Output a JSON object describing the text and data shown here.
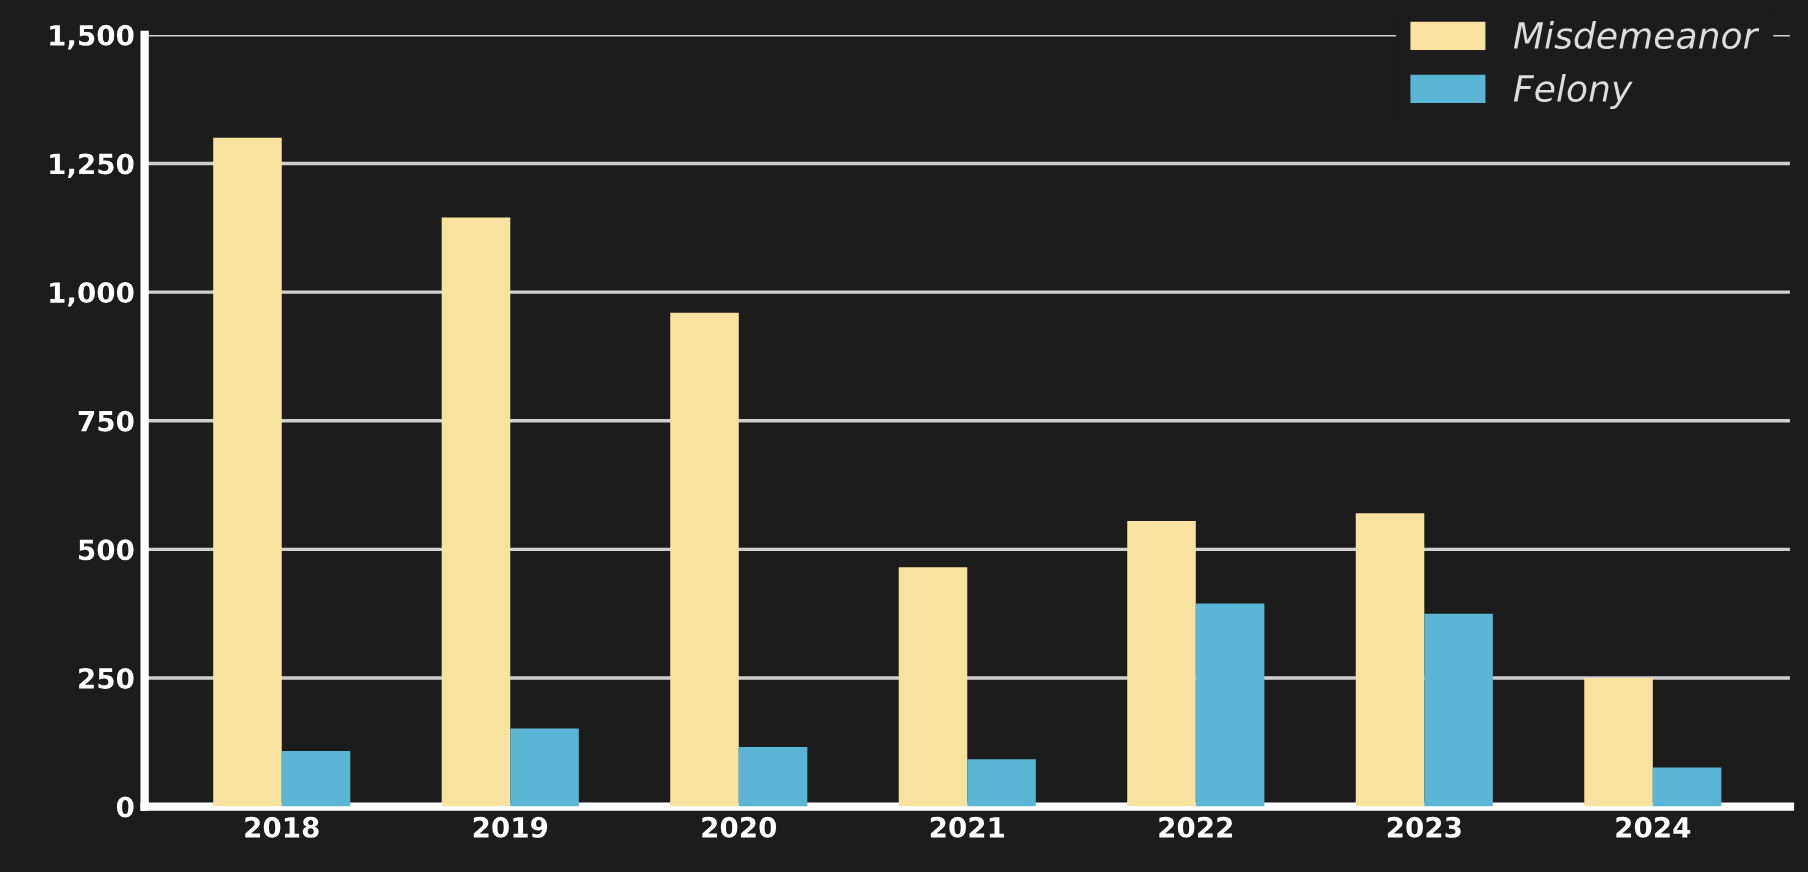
{
  "chart_data": {
    "type": "bar",
    "categories": [
      "2018",
      "2019",
      "2020",
      "2021",
      "2022",
      "2023",
      "2024"
    ],
    "series": [
      {
        "name": "Misdemeanor",
        "color": "#f8e2a0",
        "values": [
          1300,
          1145,
          960,
          465,
          555,
          570,
          250
        ]
      },
      {
        "name": "Felony",
        "color": "#5ab6d4",
        "values": [
          108,
          152,
          116,
          92,
          395,
          375,
          76
        ]
      }
    ],
    "ylim": [
      0,
      1500
    ],
    "yticks": [
      {
        "value": 0,
        "label": "0"
      },
      {
        "value": 250,
        "label": "250"
      },
      {
        "value": 500,
        "label": "500"
      },
      {
        "value": 750,
        "label": "750"
      },
      {
        "value": 1000,
        "label": "1,000"
      },
      {
        "value": 1250,
        "label": "1,250"
      },
      {
        "value": 1500,
        "label": "1,500"
      }
    ],
    "grid": "y",
    "legend": "top right"
  }
}
